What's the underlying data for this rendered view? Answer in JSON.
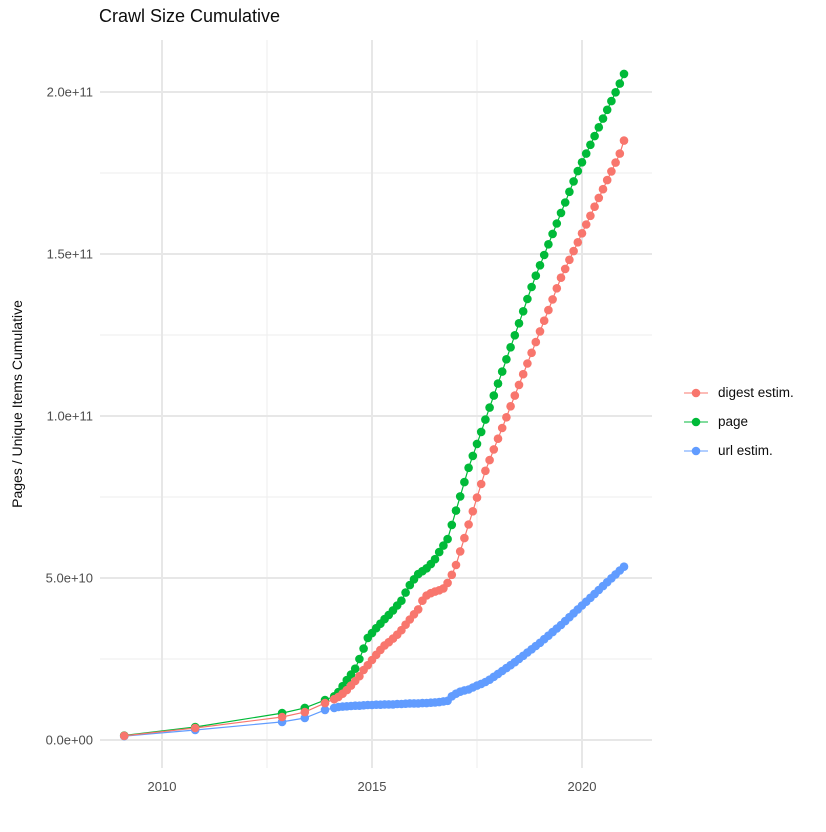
{
  "title": "Crawl Size Cumulative",
  "y_axis_label": "Pages / Unique Items Cumulative",
  "legend": {
    "items": [
      {
        "label": "digest estim.",
        "color": "#F8766D"
      },
      {
        "label": "page",
        "color": "#00BA38"
      },
      {
        "label": "url estim.",
        "color": "#619CFF"
      }
    ]
  },
  "chart_data": {
    "type": "scatter",
    "title": "Crawl Size Cumulative",
    "xlabel": "",
    "ylabel": "Pages / Unique Items Cumulative",
    "units": "cumulative count (billions, 1e9)",
    "grid": true,
    "legend_position": "right",
    "xlim": [
      2008.5,
      2021.7
    ],
    "ylim_billions": [
      -8,
      216
    ],
    "x_ticks": {
      "values": [
        2010,
        2015,
        2020
      ],
      "labels": [
        "2010",
        "2015",
        "2020"
      ]
    },
    "x_minor": [
      2012.5,
      2017.5
    ],
    "y_ticks": {
      "values_billions": [
        0,
        50,
        100,
        150,
        200
      ],
      "labels": [
        "0.0e+00",
        "5.0e+10",
        "1.0e+11",
        "1.5e+11",
        "2.0e+11"
      ]
    },
    "y_minor_billions": [
      25,
      75,
      125,
      175
    ],
    "series": [
      {
        "name": "digest estim.",
        "color": "#F8766D",
        "points": [
          [
            2009.1,
            1.3
          ],
          [
            2010.79,
            3.7
          ],
          [
            2012.86,
            7.1
          ],
          [
            2013.4,
            8.6
          ],
          [
            2013.88,
            11.4
          ],
          [
            2014.1,
            12.6
          ],
          [
            2014.2,
            13.3
          ],
          [
            2014.3,
            14.3
          ],
          [
            2014.4,
            15.4
          ],
          [
            2014.5,
            16.8
          ],
          [
            2014.6,
            18.2
          ],
          [
            2014.7,
            19.7
          ],
          [
            2014.8,
            21.6
          ],
          [
            2014.9,
            23.1
          ],
          [
            2015.0,
            24.7
          ],
          [
            2015.1,
            26.3
          ],
          [
            2015.2,
            27.8
          ],
          [
            2015.3,
            29.2
          ],
          [
            2015.4,
            30.2
          ],
          [
            2015.5,
            31.3
          ],
          [
            2015.6,
            32.5
          ],
          [
            2015.7,
            33.9
          ],
          [
            2015.8,
            35.6
          ],
          [
            2015.9,
            37.2
          ],
          [
            2016.0,
            38.8
          ],
          [
            2016.1,
            40.3
          ],
          [
            2016.2,
            43.0
          ],
          [
            2016.3,
            44.6
          ],
          [
            2016.4,
            45.3
          ],
          [
            2016.5,
            45.8
          ],
          [
            2016.6,
            46.2
          ],
          [
            2016.7,
            46.8
          ],
          [
            2016.8,
            48.5
          ],
          [
            2016.9,
            51.0
          ],
          [
            2017.0,
            54.0
          ],
          [
            2017.1,
            58.2
          ],
          [
            2017.2,
            62.3
          ],
          [
            2017.3,
            66.5
          ],
          [
            2017.4,
            70.6
          ],
          [
            2017.5,
            74.8
          ],
          [
            2017.6,
            79.0
          ],
          [
            2017.7,
            83.1
          ],
          [
            2017.8,
            86.4
          ],
          [
            2017.9,
            89.7
          ],
          [
            2018.0,
            93.0
          ],
          [
            2018.1,
            96.3
          ],
          [
            2018.2,
            99.6
          ],
          [
            2018.3,
            103.0
          ],
          [
            2018.4,
            106.3
          ],
          [
            2018.5,
            109.6
          ],
          [
            2018.6,
            112.9
          ],
          [
            2018.7,
            116.2
          ],
          [
            2018.8,
            119.5
          ],
          [
            2018.9,
            122.8
          ],
          [
            2019.0,
            126.1
          ],
          [
            2019.1,
            129.4
          ],
          [
            2019.2,
            132.7
          ],
          [
            2019.3,
            136.0
          ],
          [
            2019.4,
            139.4
          ],
          [
            2019.5,
            142.7
          ],
          [
            2019.6,
            145.4
          ],
          [
            2019.7,
            148.2
          ],
          [
            2019.8,
            150.9
          ],
          [
            2019.9,
            153.6
          ],
          [
            2020.0,
            156.4
          ],
          [
            2020.1,
            159.1
          ],
          [
            2020.2,
            161.8
          ],
          [
            2020.3,
            164.6
          ],
          [
            2020.4,
            167.3
          ],
          [
            2020.5,
            170.0
          ],
          [
            2020.6,
            172.8
          ],
          [
            2020.7,
            175.5
          ],
          [
            2020.8,
            178.2
          ],
          [
            2020.9,
            181.0
          ],
          [
            2021.0,
            185.0
          ]
        ]
      },
      {
        "name": "page",
        "color": "#00BA38",
        "points": [
          [
            2009.1,
            1.4
          ],
          [
            2010.79,
            4.0
          ],
          [
            2012.86,
            8.3
          ],
          [
            2013.4,
            9.9
          ],
          [
            2013.88,
            12.3
          ],
          [
            2014.1,
            13.5
          ],
          [
            2014.2,
            14.8
          ],
          [
            2014.3,
            16.6
          ],
          [
            2014.4,
            18.5
          ],
          [
            2014.5,
            20.2
          ],
          [
            2014.6,
            22.0
          ],
          [
            2014.7,
            25.0
          ],
          [
            2014.8,
            28.2
          ],
          [
            2014.9,
            31.5
          ],
          [
            2015.0,
            33.0
          ],
          [
            2015.1,
            34.5
          ],
          [
            2015.2,
            35.9
          ],
          [
            2015.3,
            37.3
          ],
          [
            2015.4,
            38.6
          ],
          [
            2015.5,
            40.0
          ],
          [
            2015.6,
            41.5
          ],
          [
            2015.7,
            43.0
          ],
          [
            2015.8,
            45.5
          ],
          [
            2015.9,
            47.8
          ],
          [
            2016.0,
            49.6
          ],
          [
            2016.1,
            51.2
          ],
          [
            2016.2,
            52.1
          ],
          [
            2016.3,
            53.0
          ],
          [
            2016.4,
            54.3
          ],
          [
            2016.5,
            55.8
          ],
          [
            2016.6,
            58.0
          ],
          [
            2016.7,
            60.0
          ],
          [
            2016.8,
            62.0
          ],
          [
            2016.9,
            66.4
          ],
          [
            2017.0,
            70.8
          ],
          [
            2017.1,
            75.2
          ],
          [
            2017.2,
            79.6
          ],
          [
            2017.3,
            84.0
          ],
          [
            2017.4,
            87.7
          ],
          [
            2017.5,
            91.4
          ],
          [
            2017.6,
            95.1
          ],
          [
            2017.7,
            98.9
          ],
          [
            2017.8,
            102.6
          ],
          [
            2017.9,
            106.3
          ],
          [
            2018.0,
            110.0
          ],
          [
            2018.1,
            113.7
          ],
          [
            2018.2,
            117.5
          ],
          [
            2018.3,
            121.2
          ],
          [
            2018.4,
            124.9
          ],
          [
            2018.5,
            128.6
          ],
          [
            2018.6,
            132.3
          ],
          [
            2018.7,
            136.1
          ],
          [
            2018.8,
            139.8
          ],
          [
            2018.9,
            143.3
          ],
          [
            2019.0,
            146.5
          ],
          [
            2019.1,
            149.7
          ],
          [
            2019.2,
            153.0
          ],
          [
            2019.3,
            156.2
          ],
          [
            2019.4,
            159.4
          ],
          [
            2019.5,
            162.7
          ],
          [
            2019.6,
            165.9
          ],
          [
            2019.7,
            169.2
          ],
          [
            2019.8,
            172.4
          ],
          [
            2019.9,
            175.6
          ],
          [
            2020.0,
            178.3
          ],
          [
            2020.1,
            181.0
          ],
          [
            2020.2,
            183.7
          ],
          [
            2020.3,
            186.4
          ],
          [
            2020.4,
            189.1
          ],
          [
            2020.5,
            191.8
          ],
          [
            2020.6,
            194.5
          ],
          [
            2020.7,
            197.2
          ],
          [
            2020.8,
            199.9
          ],
          [
            2020.9,
            202.6
          ],
          [
            2021.0,
            205.6
          ]
        ]
      },
      {
        "name": "url estim.",
        "color": "#619CFF",
        "points": [
          [
            2009.1,
            1.2
          ],
          [
            2010.79,
            3.1
          ],
          [
            2012.86,
            5.6
          ],
          [
            2013.4,
            6.8
          ],
          [
            2013.88,
            9.3
          ],
          [
            2014.1,
            9.9
          ],
          [
            2014.2,
            10.2
          ],
          [
            2014.3,
            10.3
          ],
          [
            2014.4,
            10.4
          ],
          [
            2014.5,
            10.5
          ],
          [
            2014.6,
            10.6
          ],
          [
            2014.7,
            10.6
          ],
          [
            2014.8,
            10.7
          ],
          [
            2014.9,
            10.8
          ],
          [
            2015.0,
            10.8
          ],
          [
            2015.1,
            10.9
          ],
          [
            2015.2,
            10.9
          ],
          [
            2015.3,
            11.0
          ],
          [
            2015.4,
            11.0
          ],
          [
            2015.5,
            11.0
          ],
          [
            2015.6,
            11.1
          ],
          [
            2015.7,
            11.1
          ],
          [
            2015.8,
            11.2
          ],
          [
            2015.9,
            11.3
          ],
          [
            2016.0,
            11.3
          ],
          [
            2016.1,
            11.3
          ],
          [
            2016.2,
            11.4
          ],
          [
            2016.3,
            11.4
          ],
          [
            2016.4,
            11.5
          ],
          [
            2016.5,
            11.6
          ],
          [
            2016.6,
            11.7
          ],
          [
            2016.7,
            11.9
          ],
          [
            2016.8,
            12.1
          ],
          [
            2016.9,
            13.5
          ],
          [
            2017.0,
            14.3
          ],
          [
            2017.1,
            14.9
          ],
          [
            2017.2,
            15.3
          ],
          [
            2017.3,
            15.6
          ],
          [
            2017.4,
            16.2
          ],
          [
            2017.5,
            16.8
          ],
          [
            2017.6,
            17.3
          ],
          [
            2017.7,
            17.9
          ],
          [
            2017.8,
            18.6
          ],
          [
            2017.9,
            19.5
          ],
          [
            2018.0,
            20.4
          ],
          [
            2018.1,
            21.3
          ],
          [
            2018.2,
            22.2
          ],
          [
            2018.3,
            23.1
          ],
          [
            2018.4,
            24.0
          ],
          [
            2018.5,
            25.0
          ],
          [
            2018.6,
            26.0
          ],
          [
            2018.7,
            27.0
          ],
          [
            2018.8,
            28.0
          ],
          [
            2018.9,
            29.0
          ],
          [
            2019.0,
            30.0
          ],
          [
            2019.1,
            31.1
          ],
          [
            2019.2,
            32.2
          ],
          [
            2019.3,
            33.3
          ],
          [
            2019.4,
            34.4
          ],
          [
            2019.5,
            35.5
          ],
          [
            2019.6,
            36.7
          ],
          [
            2019.7,
            37.9
          ],
          [
            2019.8,
            39.1
          ],
          [
            2019.9,
            40.3
          ],
          [
            2020.0,
            41.5
          ],
          [
            2020.1,
            42.7
          ],
          [
            2020.2,
            43.9
          ],
          [
            2020.3,
            45.1
          ],
          [
            2020.4,
            46.3
          ],
          [
            2020.5,
            47.5
          ],
          [
            2020.6,
            48.7
          ],
          [
            2020.7,
            49.9
          ],
          [
            2020.8,
            51.1
          ],
          [
            2020.9,
            52.3
          ],
          [
            2021.0,
            53.5
          ]
        ]
      }
    ]
  }
}
